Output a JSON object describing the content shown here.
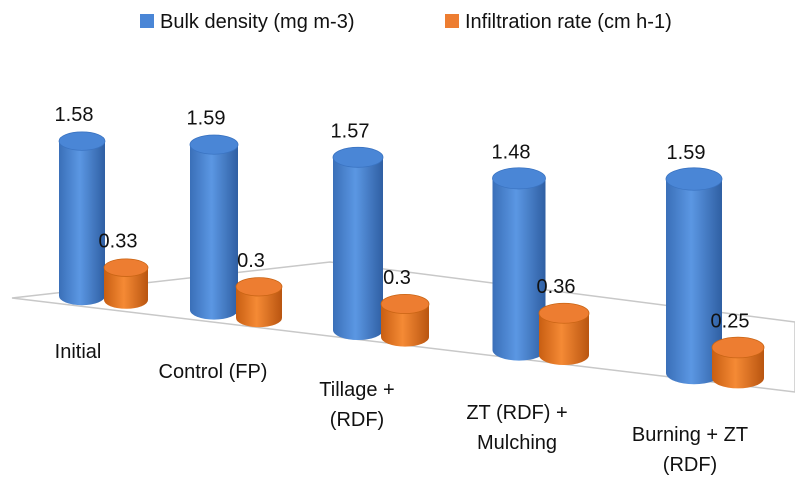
{
  "chart_data": {
    "type": "bar3d",
    "categories": [
      "Initial",
      "Control (FP)",
      "Tillage + (RDF)",
      "ZT (RDF) + Mulching",
      "Burning + ZT (RDF)"
    ],
    "series": [
      {
        "name": "Bulk density (mg m-3)",
        "color": "#4a86d6",
        "values": [
          1.58,
          1.59,
          1.57,
          1.48,
          1.59
        ]
      },
      {
        "name": "Infiltration rate (cm h-1)",
        "color": "#ed7d31",
        "values": [
          0.33,
          0.3,
          0.3,
          0.36,
          0.25
        ]
      }
    ],
    "legend": "top"
  }
}
